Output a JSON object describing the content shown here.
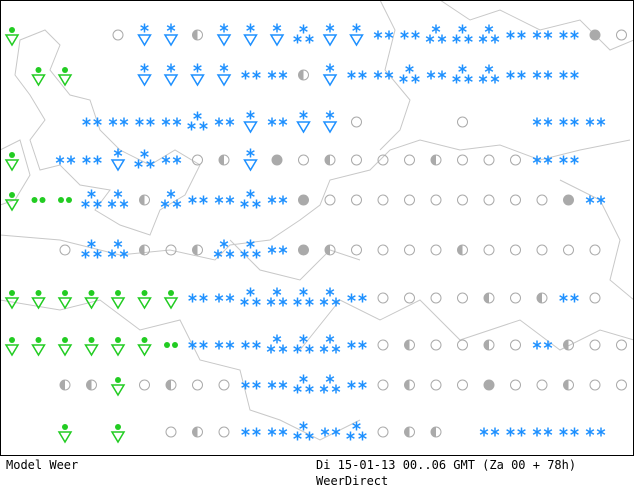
{
  "footer": {
    "model": "Model Weer",
    "time": "Di 15-01-13 00..06 GMT (Za 00 + 78h)",
    "source": "WeerDirect"
  }
}
